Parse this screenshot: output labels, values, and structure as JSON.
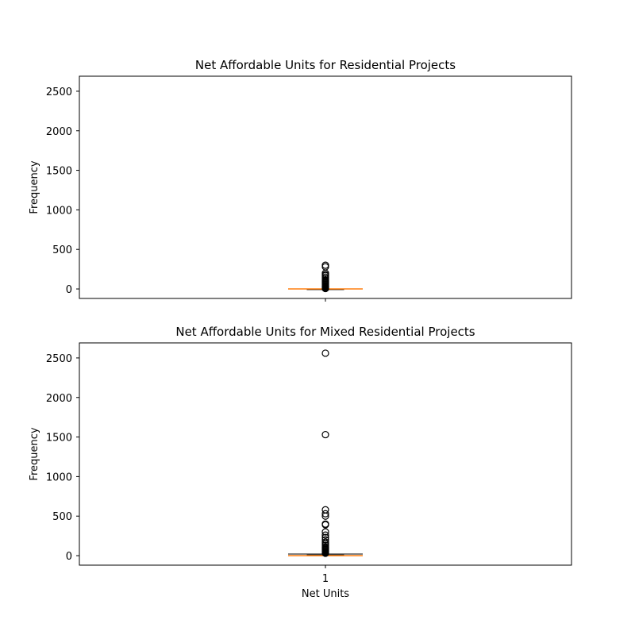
{
  "chart_data": [
    {
      "type": "boxplot",
      "title": "Net Affordable Units for Residential Projects",
      "xlabel": "",
      "ylabel": "Frequency",
      "ylim": [
        -120,
        2690
      ],
      "yticks": [
        0,
        500,
        1000,
        1500,
        2000,
        2500
      ],
      "xticklabels": [],
      "grid": false,
      "box": {
        "position": 1,
        "whisker_low": 0,
        "q1": 0,
        "median": 0,
        "q3": 0,
        "whisker_high": 0
      },
      "outliers": [
        5,
        10,
        15,
        20,
        25,
        30,
        35,
        40,
        50,
        60,
        70,
        80,
        90,
        100,
        110,
        130,
        150,
        170,
        180,
        200,
        280,
        300
      ]
    },
    {
      "type": "boxplot",
      "title": "Net Affordable Units for Mixed Residential Projects",
      "xlabel": "Net Units",
      "ylabel": "Frequency",
      "ylim": [
        -120,
        2690
      ],
      "yticks": [
        0,
        500,
        1000,
        1500,
        2000,
        2500
      ],
      "xticklabels": [
        "1"
      ],
      "grid": false,
      "box": {
        "position": 1,
        "whisker_low": 0,
        "q1": 0,
        "median": 0,
        "q3": 8,
        "whisker_high": 20
      },
      "outliers": [
        30,
        40,
        50,
        60,
        70,
        80,
        90,
        100,
        110,
        130,
        150,
        170,
        200,
        230,
        260,
        300,
        390,
        400,
        500,
        530,
        580,
        1530,
        2560
      ]
    }
  ],
  "colors": {
    "box": "#000000",
    "median": "#ff7f0e",
    "outlier_edge": "#000000"
  }
}
